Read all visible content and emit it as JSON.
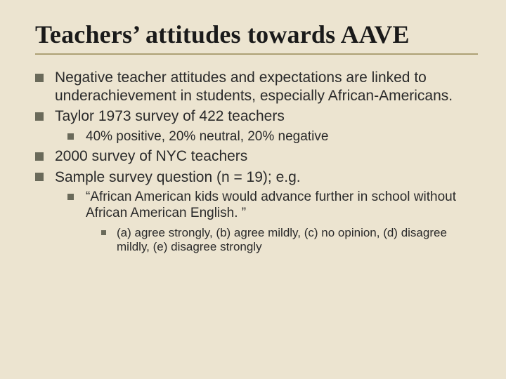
{
  "slide": {
    "background_color": "#ece4d0",
    "title_font": "Times New Roman",
    "body_font": "Arial",
    "bullet_color": "#6a6a5a",
    "rule_color": "#7a6a2a",
    "title_fontsize": 36,
    "body_fontsize": 21
  },
  "title": "Teachers’ attitudes towards AAVE",
  "bullets": {
    "b1": "Negative teacher attitudes and expectations are linked to underachievement in students, especially African-Americans.",
    "b2": "Taylor 1973 survey of 422 teachers",
    "b2_1": "40% positive, 20% neutral, 20% negative",
    "b3": "2000 survey of NYC teachers",
    "b4": "Sample survey question (n = 19); e.g.",
    "b4_1": "“African American kids would advance further in school without African American English. ”",
    "b4_1_1": "(a) agree strongly, (b) agree mildly, (c) no opinion, (d) disagree mildly, (e) disagree strongly"
  }
}
